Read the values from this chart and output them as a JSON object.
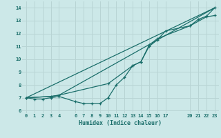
{
  "title": "",
  "xlabel": "Humidex (Indice chaleur)",
  "bg_color": "#cce8e8",
  "grid_color": "#b8d4d4",
  "line_color": "#1a6e6a",
  "xlim": [
    -0.5,
    23.5
  ],
  "ylim": [
    5.8,
    14.5
  ],
  "xticks": [
    0,
    1,
    2,
    3,
    4,
    6,
    7,
    8,
    9,
    10,
    11,
    12,
    13,
    14,
    15,
    16,
    17,
    20,
    21,
    22,
    23
  ],
  "yticks": [
    6,
    7,
    8,
    9,
    10,
    11,
    12,
    13,
    14
  ],
  "line1_x": [
    0,
    1,
    2,
    3,
    4,
    6,
    7,
    8,
    9,
    10,
    11,
    12,
    13,
    14,
    15,
    16,
    17,
    20,
    21,
    22,
    23
  ],
  "line1_y": [
    7.0,
    6.9,
    6.9,
    7.0,
    7.1,
    6.7,
    6.55,
    6.55,
    6.55,
    7.0,
    8.0,
    8.6,
    9.5,
    9.8,
    11.0,
    11.5,
    12.2,
    12.6,
    13.1,
    13.35,
    14.0
  ],
  "line2_x": [
    0,
    3,
    4,
    10,
    13,
    14,
    15,
    16,
    20,
    22,
    23
  ],
  "line2_y": [
    7.0,
    7.1,
    7.2,
    8.1,
    9.5,
    9.8,
    11.1,
    11.6,
    12.6,
    13.3,
    13.4
  ],
  "line3_x": [
    0,
    3,
    4,
    23
  ],
  "line3_y": [
    7.0,
    7.1,
    7.2,
    14.0
  ],
  "line4_x": [
    0,
    23
  ],
  "line4_y": [
    7.0,
    14.0
  ]
}
